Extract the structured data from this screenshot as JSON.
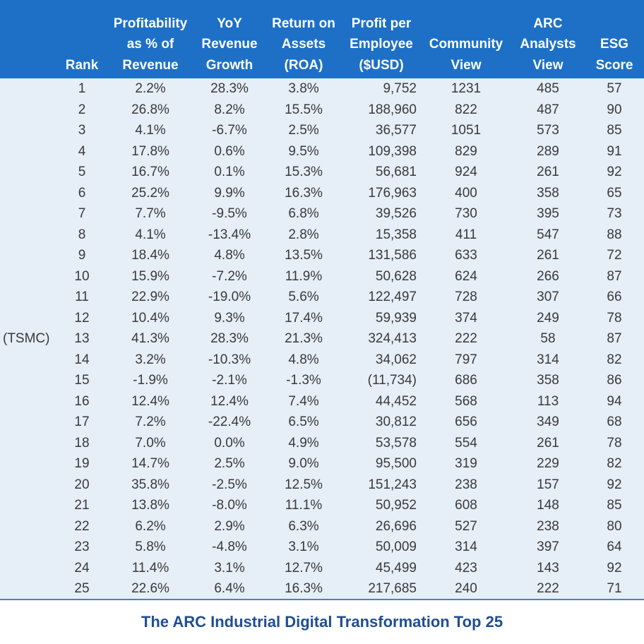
{
  "headers": {
    "rank": [
      "Rank"
    ],
    "profitability": [
      "Profitability",
      "as % of",
      "Revenue"
    ],
    "yoy": [
      "YoY",
      "Revenue",
      "Growth"
    ],
    "roa": [
      "Return on",
      "Assets",
      "(ROA)"
    ],
    "ppe": [
      "Profit per",
      "Employee",
      "($USD)"
    ],
    "community": [
      "Community",
      "View"
    ],
    "arc": [
      "ARC",
      "Analysts",
      "View"
    ],
    "esg": [
      "ESG",
      "Score"
    ]
  },
  "rows": [
    {
      "company": "",
      "rank": "1",
      "profitability": "2.2%",
      "yoy": "28.3%",
      "roa": "3.8%",
      "ppe": "9,752",
      "community": "1231",
      "arc": "485",
      "esg": "57"
    },
    {
      "company": "",
      "rank": "2",
      "profitability": "26.8%",
      "yoy": "8.2%",
      "roa": "15.5%",
      "ppe": "188,960",
      "community": "822",
      "arc": "487",
      "esg": "90"
    },
    {
      "company": "",
      "rank": "3",
      "profitability": "4.1%",
      "yoy": "-6.7%",
      "roa": "2.5%",
      "ppe": "36,577",
      "community": "1051",
      "arc": "573",
      "esg": "85"
    },
    {
      "company": "",
      "rank": "4",
      "profitability": "17.8%",
      "yoy": "0.6%",
      "roa": "9.5%",
      "ppe": "109,398",
      "community": "829",
      "arc": "289",
      "esg": "91"
    },
    {
      "company": "",
      "rank": "5",
      "profitability": "16.7%",
      "yoy": "0.1%",
      "roa": "15.3%",
      "ppe": "56,681",
      "community": "924",
      "arc": "261",
      "esg": "92"
    },
    {
      "company": "",
      "rank": "6",
      "profitability": "25.2%",
      "yoy": "9.9%",
      "roa": "16.3%",
      "ppe": "176,963",
      "community": "400",
      "arc": "358",
      "esg": "65"
    },
    {
      "company": "",
      "rank": "7",
      "profitability": "7.7%",
      "yoy": "-9.5%",
      "roa": "6.8%",
      "ppe": "39,526",
      "community": "730",
      "arc": "395",
      "esg": "73"
    },
    {
      "company": "",
      "rank": "8",
      "profitability": "4.1%",
      "yoy": "-13.4%",
      "roa": "2.8%",
      "ppe": "15,358",
      "community": "411",
      "arc": "547",
      "esg": "88"
    },
    {
      "company": "",
      "rank": "9",
      "profitability": "18.4%",
      "yoy": "4.8%",
      "roa": "13.5%",
      "ppe": "131,586",
      "community": "633",
      "arc": "261",
      "esg": "72"
    },
    {
      "company": "",
      "rank": "10",
      "profitability": "15.9%",
      "yoy": "-7.2%",
      "roa": "11.9%",
      "ppe": "50,628",
      "community": "624",
      "arc": "266",
      "esg": "87"
    },
    {
      "company": "",
      "rank": "11",
      "profitability": "22.9%",
      "yoy": "-19.0%",
      "roa": "5.6%",
      "ppe": "122,497",
      "community": "728",
      "arc": "307",
      "esg": "66"
    },
    {
      "company": "",
      "rank": "12",
      "profitability": "10.4%",
      "yoy": "9.3%",
      "roa": "17.4%",
      "ppe": "59,939",
      "community": "374",
      "arc": "249",
      "esg": "78"
    },
    {
      "company": "(TSMC)",
      "rank": "13",
      "profitability": "41.3%",
      "yoy": "28.3%",
      "roa": "21.3%",
      "ppe": "324,413",
      "community": "222",
      "arc": "58",
      "esg": "87"
    },
    {
      "company": "",
      "rank": "14",
      "profitability": "3.2%",
      "yoy": "-10.3%",
      "roa": "4.8%",
      "ppe": "34,062",
      "community": "797",
      "arc": "314",
      "esg": "82"
    },
    {
      "company": "",
      "rank": "15",
      "profitability": "-1.9%",
      "yoy": "-2.1%",
      "roa": "-1.3%",
      "ppe": "(11,734)",
      "community": "686",
      "arc": "358",
      "esg": "86"
    },
    {
      "company": "",
      "rank": "16",
      "profitability": "12.4%",
      "yoy": "12.4%",
      "roa": "7.4%",
      "ppe": "44,452",
      "community": "568",
      "arc": "113",
      "esg": "94"
    },
    {
      "company": "",
      "rank": "17",
      "profitability": "7.2%",
      "yoy": "-22.4%",
      "roa": "6.5%",
      "ppe": "30,812",
      "community": "656",
      "arc": "349",
      "esg": "68"
    },
    {
      "company": "",
      "rank": "18",
      "profitability": "7.0%",
      "yoy": "0.0%",
      "roa": "4.9%",
      "ppe": "53,578",
      "community": "554",
      "arc": "261",
      "esg": "78"
    },
    {
      "company": "",
      "rank": "19",
      "profitability": "14.7%",
      "yoy": "2.5%",
      "roa": "9.0%",
      "ppe": "95,500",
      "community": "319",
      "arc": "229",
      "esg": "82"
    },
    {
      "company": "",
      "rank": "20",
      "profitability": "35.8%",
      "yoy": "-2.5%",
      "roa": "12.5%",
      "ppe": "151,243",
      "community": "238",
      "arc": "157",
      "esg": "92"
    },
    {
      "company": "",
      "rank": "21",
      "profitability": "13.8%",
      "yoy": "-8.0%",
      "roa": "11.1%",
      "ppe": "50,952",
      "community": "608",
      "arc": "148",
      "esg": "85"
    },
    {
      "company": "",
      "rank": "22",
      "profitability": "6.2%",
      "yoy": "2.9%",
      "roa": "6.3%",
      "ppe": "26,696",
      "community": "527",
      "arc": "238",
      "esg": "80"
    },
    {
      "company": "",
      "rank": "23",
      "profitability": "5.8%",
      "yoy": "-4.8%",
      "roa": "3.1%",
      "ppe": "50,009",
      "community": "314",
      "arc": "397",
      "esg": "64"
    },
    {
      "company": "",
      "rank": "24",
      "profitability": "11.4%",
      "yoy": "3.1%",
      "roa": "12.7%",
      "ppe": "45,499",
      "community": "423",
      "arc": "143",
      "esg": "92"
    },
    {
      "company": "",
      "rank": "25",
      "profitability": "22.6%",
      "yoy": "6.4%",
      "roa": "16.3%",
      "ppe": "217,685",
      "community": "240",
      "arc": "222",
      "esg": "71"
    }
  ],
  "caption": "The ARC Industrial Digital Transformation Top 25",
  "colors": {
    "header_bg": "#1d70c6",
    "body_bg": "#e6eef8",
    "caption": "#1f4e93"
  }
}
